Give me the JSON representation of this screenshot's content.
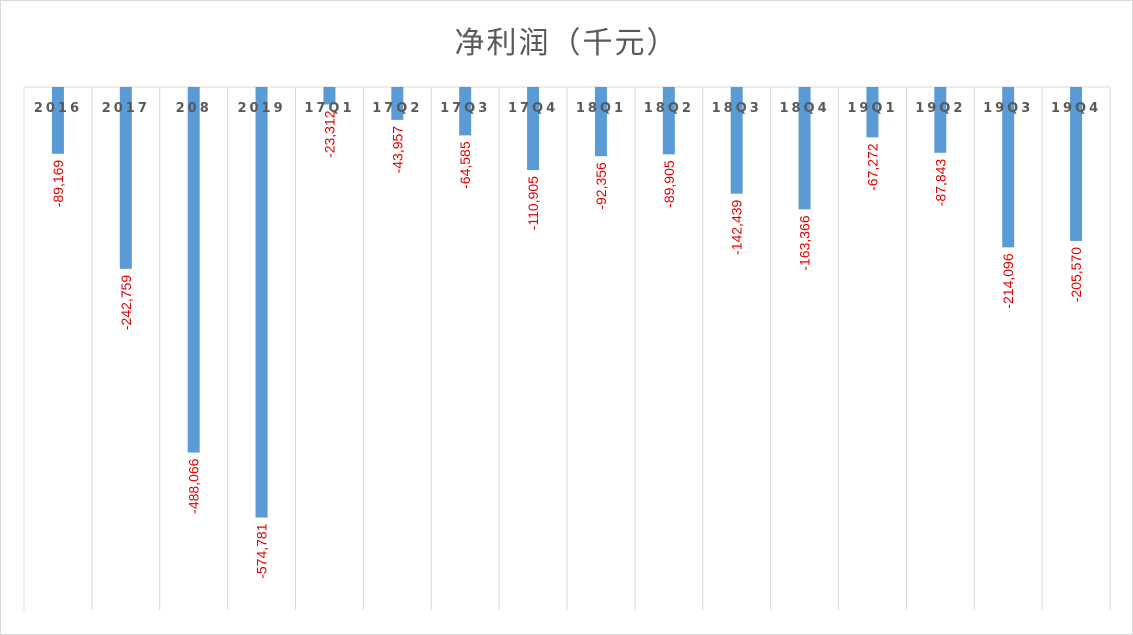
{
  "chart_data": {
    "type": "bar",
    "title": "净利润（千元）",
    "xlabel": "",
    "ylabel": "",
    "categories": [
      "2016",
      "2017",
      "208",
      "2019",
      "17Q1",
      "17Q2",
      "17Q3",
      "17Q4",
      "18Q1",
      "18Q2",
      "18Q3",
      "18Q4",
      "19Q1",
      "19Q2",
      "19Q3",
      "19Q4"
    ],
    "values": [
      -89169,
      -242759,
      -488066,
      -574781,
      -23312,
      -43957,
      -64585,
      -110905,
      -92356,
      -89905,
      -142439,
      -163366,
      -67272,
      -87843,
      -214096,
      -205570
    ],
    "data_labels": [
      "-89,169",
      "-242,759",
      "-488,066",
      "-574,781",
      "-23,312",
      "-43,957",
      "-64,585",
      "-110,905",
      "-92,356",
      "-89,905",
      "-142,439",
      "-163,366",
      "-67,272",
      "-87,843",
      "-214,096",
      "-205,570"
    ],
    "ylim": [
      -700000,
      0
    ],
    "grid": "vertical category separators",
    "legend": "none",
    "bar_color": "#5b9bd5",
    "label_color": "#e00000"
  }
}
